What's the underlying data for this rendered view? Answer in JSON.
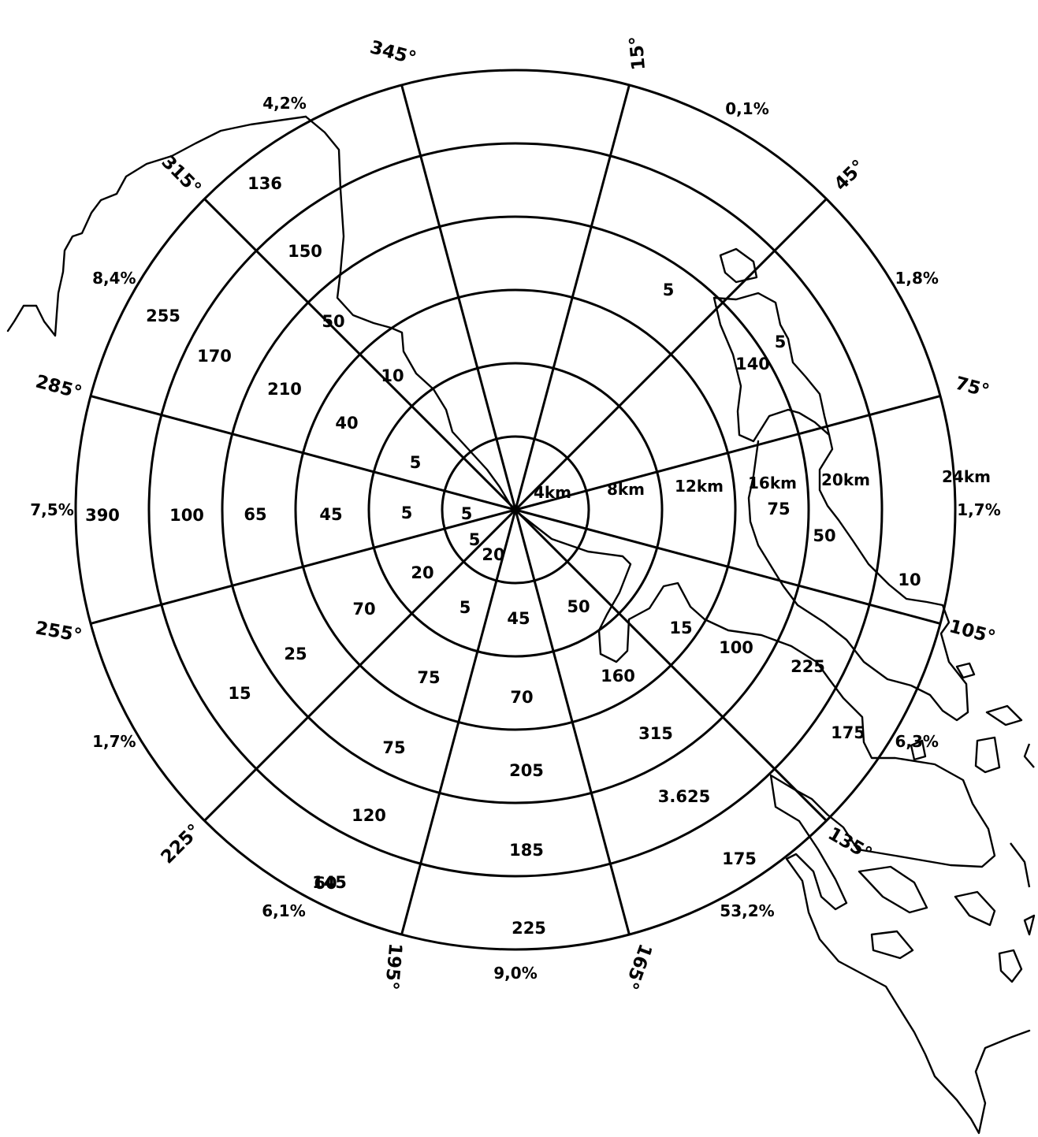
{
  "distance_labels": [
    "4km",
    "8km",
    "12km",
    "16km",
    "20km",
    "24km"
  ],
  "sectors": [
    {
      "direction": "345°",
      "counts": [],
      "percent": ""
    },
    {
      "direction": "15°",
      "counts": [
        "5"
      ],
      "percent": "0,1%"
    },
    {
      "direction": "45°",
      "counts": [
        "140",
        "5"
      ],
      "percent": "1,8%"
    },
    {
      "direction": "75°",
      "counts": [
        "75",
        "50",
        "10"
      ],
      "percent": "1,7%"
    },
    {
      "direction": "105°",
      "counts": [
        "50",
        "160",
        "15",
        "100",
        "225",
        "175"
      ],
      "percent": "6,3%"
    },
    {
      "direction": "135°",
      "counts": [
        "315",
        "3.625",
        "175"
      ],
      "percent": "53,2%"
    },
    {
      "direction": "165°",
      "counts": [
        "20",
        "45",
        "70",
        "205",
        "185",
        "225"
      ],
      "percent": "9,0%"
    },
    {
      "direction": "195°",
      "counts": [
        "5",
        "75",
        "75",
        "120",
        "145",
        "60"
      ],
      "percent": "6,1%"
    },
    {
      "direction": "225°",
      "counts": [
        "5",
        "20",
        "70",
        "25",
        "15"
      ],
      "percent": "1,7%"
    },
    {
      "direction": "255°",
      "counts": [
        "5",
        "5",
        "45",
        "65",
        "100",
        "390"
      ],
      "percent": "7,5%"
    },
    {
      "direction": "285°",
      "counts": [
        "5",
        "40",
        "210",
        "170",
        "255"
      ],
      "percent": "8,4%"
    },
    {
      "direction": "315°",
      "counts": [
        "10",
        "50",
        "150",
        "136"
      ],
      "percent": "4,2%"
    }
  ],
  "colors": {
    "line": "#000000",
    "background": "#ffffff"
  }
}
